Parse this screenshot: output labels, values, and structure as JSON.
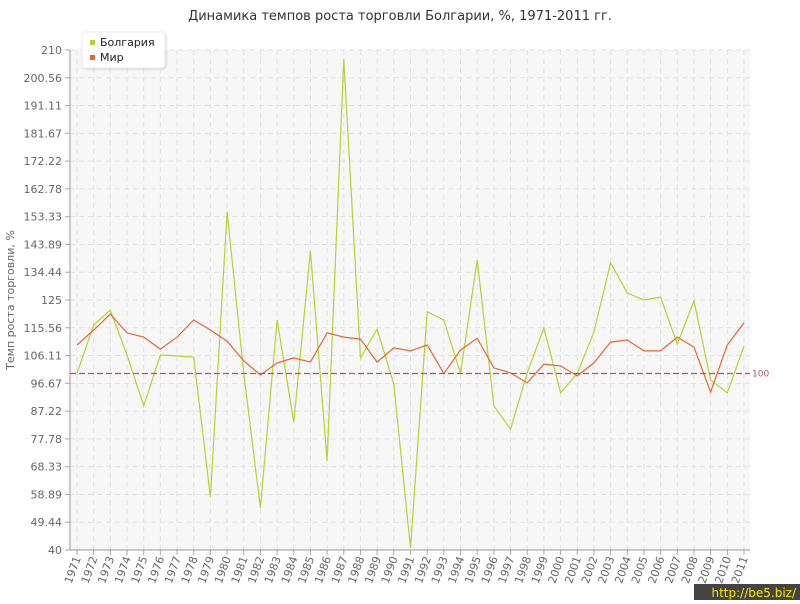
{
  "chart_data": {
    "type": "line",
    "title": "Динамика темпов роста торговли Болгарии, %, 1971-2011 гг.",
    "y_label": "Темп роста торговли, %",
    "categories": [
      "1971",
      "1972",
      "1973",
      "1974",
      "1975",
      "1976",
      "1977",
      "1978",
      "1979",
      "1980",
      "1981",
      "1982",
      "1983",
      "1984",
      "1985",
      "1986",
      "1987",
      "1988",
      "1989",
      "1990",
      "1991",
      "1992",
      "1993",
      "1994",
      "1995",
      "1996",
      "1997",
      "1998",
      "1999",
      "2000",
      "2001",
      "2002",
      "2003",
      "2004",
      "2005",
      "2006",
      "2007",
      "2008",
      "2009",
      "2010",
      "2011"
    ],
    "series": [
      {
        "name": "Болгария",
        "color": "#b5d334",
        "values": [
          100,
          116.5,
          121.6,
          106.3,
          89,
          106.3,
          106,
          105.6,
          58,
          155,
          100,
          54.3,
          118.2,
          83.5,
          141.7,
          70.3,
          207,
          105.3,
          115.1,
          96.4,
          40.7,
          121,
          118.2,
          100,
          138.6,
          89,
          81.1,
          100.2,
          115.5,
          93.4,
          100,
          114.1,
          137.6,
          127.4,
          125,
          126,
          110,
          124.7,
          97.8,
          93.4,
          109.4
        ]
      },
      {
        "name": "Мир",
        "color": "#e0673a",
        "values": [
          109.7,
          114.8,
          120.2,
          113.8,
          112.4,
          108.3,
          112.4,
          118.2,
          114.8,
          111,
          104.3,
          99.5,
          103.6,
          105.3,
          103.9,
          113.8,
          112.4,
          111.7,
          103.9,
          108.7,
          107.7,
          109.7,
          100,
          108,
          112,
          101.9,
          100.2,
          96.8,
          103.2,
          102.6,
          99.2,
          103.6,
          110.7,
          111.4,
          107.7,
          107.7,
          112.4,
          109,
          93.7,
          109.7,
          117.2
        ]
      }
    ],
    "ylim": [
      40,
      210
    ],
    "yticks": [
      40,
      49.44,
      58.89,
      68.33,
      77.78,
      87.22,
      96.67,
      106.11,
      115.56,
      125,
      134.44,
      143.89,
      153.33,
      162.78,
      172.22,
      181.67,
      191.11,
      200.56,
      210
    ],
    "reference_line": 100,
    "reference_color": "#b5546a",
    "grid": true,
    "legend": "top-left",
    "watermark": "http://be5.biz/"
  }
}
